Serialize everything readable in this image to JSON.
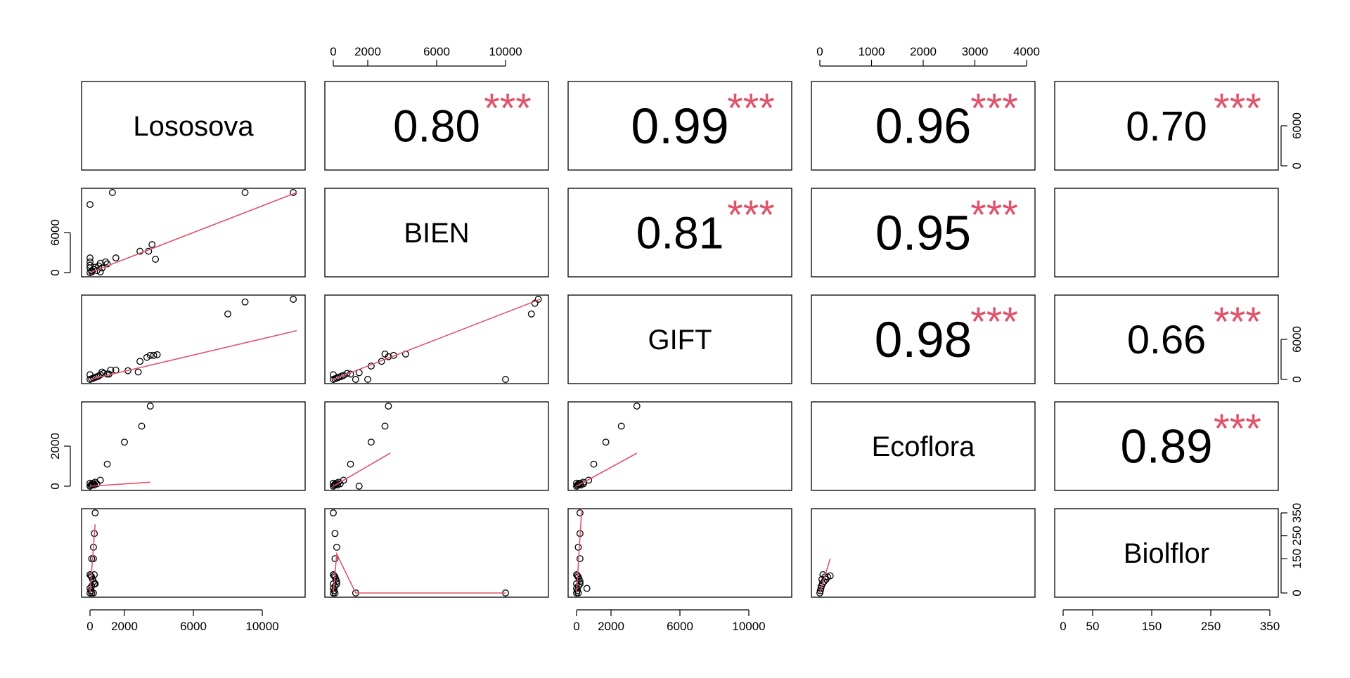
{
  "chart_data": {
    "type": "scatter",
    "variables": [
      "Lososova",
      "BIEN",
      "GIFT",
      "Ecoflora",
      "Biolflor"
    ],
    "correlations": [
      {
        "row": 0,
        "col": 1,
        "value": "0.80",
        "stars": "***"
      },
      {
        "row": 0,
        "col": 2,
        "value": "0.99",
        "stars": "***"
      },
      {
        "row": 0,
        "col": 3,
        "value": "0.96",
        "stars": "***"
      },
      {
        "row": 0,
        "col": 4,
        "value": "0.70",
        "stars": "***"
      },
      {
        "row": 1,
        "col": 2,
        "value": "0.81",
        "stars": "***"
      },
      {
        "row": 1,
        "col": 3,
        "value": "0.95",
        "stars": "***"
      },
      {
        "row": 2,
        "col": 3,
        "value": "0.98",
        "stars": "***"
      },
      {
        "row": 2,
        "col": 4,
        "value": "0.66",
        "stars": "***"
      },
      {
        "row": 3,
        "col": 4,
        "value": "0.89",
        "stars": "***"
      }
    ],
    "ranges": {
      "Lososova": [
        0,
        12000
      ],
      "BIEN": [
        0,
        12000
      ],
      "GIFT": [
        0,
        12000
      ],
      "Ecoflora": [
        0,
        4000
      ],
      "Biolflor": [
        0,
        350
      ]
    },
    "ticks": {
      "Lososova": [
        0,
        2000,
        6000,
        10000
      ],
      "BIEN": [
        0,
        2000,
        6000,
        10000
      ],
      "GIFT": [
        0,
        2000,
        6000,
        10000
      ],
      "Ecoflora": [
        0,
        1000,
        2000,
        3000,
        4000
      ],
      "Ecoflora_y": [
        0,
        2000
      ],
      "Biolflor_x": [
        0,
        50,
        150,
        250,
        350
      ],
      "Biolflor_y": [
        0,
        150,
        250,
        350
      ],
      "Lososova_y": [
        0,
        6000
      ],
      "right_y": [
        0,
        6000
      ]
    },
    "scatter": [
      {
        "row": 1,
        "col": 0,
        "points": [
          [
            0,
            10200
          ],
          [
            1300,
            12000
          ],
          [
            9000,
            12000
          ],
          [
            11800,
            12000
          ],
          [
            3400,
            3200
          ],
          [
            3600,
            4200
          ],
          [
            2900,
            3200
          ],
          [
            3800,
            2000
          ],
          [
            1500,
            2200
          ],
          [
            900,
            1600
          ],
          [
            600,
            1400
          ],
          [
            0,
            2200
          ],
          [
            0,
            1600
          ],
          [
            0,
            1100
          ],
          [
            0,
            700
          ],
          [
            200,
            500
          ],
          [
            400,
            300
          ],
          [
            600,
            100
          ],
          [
            100,
            100
          ],
          [
            300,
            800
          ],
          [
            700,
            700
          ],
          [
            1000,
            1300
          ],
          [
            500,
            1000
          ],
          [
            0,
            0
          ],
          [
            100,
            300
          ]
        ],
        "fit": [
          [
            0,
            0
          ],
          [
            12000,
            12000
          ]
        ]
      },
      {
        "row": 2,
        "col": 0,
        "points": [
          [
            0,
            700
          ],
          [
            1100,
            800
          ],
          [
            2200,
            1300
          ],
          [
            2800,
            1100
          ],
          [
            3300,
            3300
          ],
          [
            3500,
            3600
          ],
          [
            3700,
            3600
          ],
          [
            3900,
            3700
          ],
          [
            2900,
            2700
          ],
          [
            8000,
            9800
          ],
          [
            9000,
            11600
          ],
          [
            11800,
            12000
          ],
          [
            600,
            700
          ],
          [
            800,
            900
          ],
          [
            400,
            400
          ],
          [
            200,
            200
          ],
          [
            100,
            100
          ],
          [
            300,
            300
          ],
          [
            1500,
            1400
          ],
          [
            700,
            1100
          ],
          [
            1200,
            1400
          ],
          [
            1000,
            800
          ],
          [
            500,
            500
          ],
          [
            0,
            0
          ]
        ],
        "fit": [
          [
            0,
            0
          ],
          [
            12000,
            7300
          ]
        ]
      },
      {
        "row": 2,
        "col": 1,
        "points": [
          [
            0,
            700
          ],
          [
            1000,
            800
          ],
          [
            1500,
            1000
          ],
          [
            2200,
            2000
          ],
          [
            3000,
            3800
          ],
          [
            3200,
            3400
          ],
          [
            3500,
            3600
          ],
          [
            4200,
            3800
          ],
          [
            2800,
            2700
          ],
          [
            11500,
            9800
          ],
          [
            11700,
            11400
          ],
          [
            11900,
            12000
          ],
          [
            10000,
            0
          ],
          [
            2000,
            0
          ],
          [
            1300,
            0
          ],
          [
            600,
            600
          ],
          [
            800,
            900
          ],
          [
            400,
            400
          ],
          [
            200,
            200
          ],
          [
            100,
            100
          ],
          [
            300,
            300
          ],
          [
            500,
            500
          ],
          [
            0,
            0
          ]
        ],
        "fit": [
          [
            0,
            0
          ],
          [
            12000,
            12000
          ]
        ]
      },
      {
        "row": 3,
        "col": 0,
        "points": [
          [
            3500,
            4000
          ],
          [
            3000,
            3000
          ],
          [
            2000,
            2200
          ],
          [
            1000,
            1100
          ],
          [
            600,
            300
          ],
          [
            300,
            200
          ],
          [
            200,
            150
          ],
          [
            100,
            100
          ],
          [
            0,
            0
          ],
          [
            50,
            50
          ],
          [
            150,
            80
          ],
          [
            0,
            150
          ],
          [
            400,
            120
          ],
          [
            250,
            60
          ]
        ],
        "fit": [
          [
            0,
            0
          ],
          [
            3500,
            200
          ]
        ]
      },
      {
        "row": 3,
        "col": 1,
        "points": [
          [
            3200,
            4000
          ],
          [
            3000,
            3000
          ],
          [
            2200,
            2200
          ],
          [
            1000,
            1100
          ],
          [
            1500,
            0
          ],
          [
            600,
            300
          ],
          [
            300,
            200
          ],
          [
            200,
            150
          ],
          [
            100,
            100
          ],
          [
            0,
            0
          ],
          [
            50,
            50
          ],
          [
            150,
            80
          ],
          [
            0,
            150
          ],
          [
            400,
            120
          ],
          [
            250,
            60
          ]
        ],
        "fit": [
          [
            0,
            0
          ],
          [
            3300,
            1650
          ]
        ]
      },
      {
        "row": 3,
        "col": 2,
        "points": [
          [
            3500,
            4000
          ],
          [
            2600,
            3000
          ],
          [
            1700,
            2200
          ],
          [
            1000,
            1100
          ],
          [
            700,
            300
          ],
          [
            400,
            200
          ],
          [
            200,
            150
          ],
          [
            100,
            100
          ],
          [
            0,
            0
          ],
          [
            50,
            50
          ],
          [
            150,
            80
          ],
          [
            0,
            150
          ],
          [
            400,
            120
          ],
          [
            250,
            60
          ]
        ],
        "fit": [
          [
            0,
            0
          ],
          [
            3500,
            1650
          ]
        ]
      },
      {
        "row": 4,
        "col": 0,
        "points": [
          [
            300,
            350
          ],
          [
            250,
            260
          ],
          [
            200,
            200
          ],
          [
            100,
            150
          ],
          [
            200,
            150
          ],
          [
            0,
            80
          ],
          [
            50,
            75
          ],
          [
            100,
            70
          ],
          [
            150,
            60
          ],
          [
            200,
            50
          ],
          [
            250,
            40
          ],
          [
            100,
            30
          ],
          [
            0,
            20
          ],
          [
            50,
            10
          ],
          [
            200,
            0
          ],
          [
            100,
            0
          ],
          [
            0,
            0
          ],
          [
            300,
            40
          ],
          [
            250,
            80
          ]
        ],
        "fit": [
          [
            0,
            0
          ],
          [
            300,
            300
          ]
        ]
      },
      {
        "row": 4,
        "col": 1,
        "points": [
          [
            0,
            350
          ],
          [
            100,
            260
          ],
          [
            200,
            200
          ],
          [
            100,
            150
          ],
          [
            0,
            80
          ],
          [
            50,
            75
          ],
          [
            100,
            70
          ],
          [
            150,
            60
          ],
          [
            200,
            50
          ],
          [
            0,
            40
          ],
          [
            100,
            30
          ],
          [
            0,
            20
          ],
          [
            50,
            10
          ],
          [
            1300,
            0
          ],
          [
            10000,
            0
          ],
          [
            100,
            0
          ],
          [
            0,
            0
          ],
          [
            200,
            40
          ]
        ],
        "fit": [
          [
            0,
            0
          ],
          [
            200,
            170
          ],
          [
            1300,
            0
          ],
          [
            10000,
            0
          ]
        ]
      },
      {
        "row": 4,
        "col": 2,
        "points": [
          [
            200,
            350
          ],
          [
            200,
            260
          ],
          [
            100,
            200
          ],
          [
            200,
            150
          ],
          [
            0,
            80
          ],
          [
            50,
            75
          ],
          [
            100,
            70
          ],
          [
            150,
            60
          ],
          [
            200,
            50
          ],
          [
            0,
            40
          ],
          [
            100,
            30
          ],
          [
            0,
            20
          ],
          [
            50,
            10
          ],
          [
            600,
            20
          ],
          [
            100,
            0
          ],
          [
            0,
            0
          ],
          [
            200,
            40
          ]
        ],
        "fit": [
          [
            0,
            0
          ],
          [
            300,
            370
          ]
        ]
      },
      {
        "row": 4,
        "col": 3,
        "points": [
          [
            40,
            60
          ],
          [
            60,
            80
          ],
          [
            150,
            70
          ],
          [
            200,
            75
          ],
          [
            100,
            70
          ],
          [
            80,
            50
          ],
          [
            50,
            40
          ],
          [
            30,
            30
          ],
          [
            20,
            20
          ],
          [
            10,
            10
          ],
          [
            0,
            0
          ],
          [
            120,
            60
          ]
        ],
        "fit": [
          [
            0,
            0
          ],
          [
            200,
            150
          ]
        ]
      }
    ]
  }
}
